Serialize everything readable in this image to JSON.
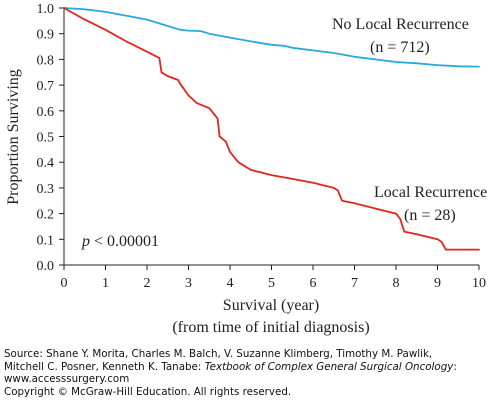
{
  "chart_data": {
    "type": "line",
    "xlabel": "Survival (year)",
    "xlabel_sub": "(from time of initial diagnosis)",
    "ylabel": "Proportion Surviving",
    "xlim": [
      0,
      10
    ],
    "ylim": [
      0,
      1.0
    ],
    "x_ticks": [
      "0",
      "1",
      "2",
      "3",
      "4",
      "5",
      "6",
      "7",
      "8",
      "9",
      "10"
    ],
    "y_ticks": [
      "0.0",
      "0.1",
      "0.2",
      "0.3",
      "0.4",
      "0.5",
      "0.6",
      "0.7",
      "0.8",
      "0.9",
      "1.0"
    ],
    "grid": false,
    "series": [
      {
        "name": "No Local Recurrence",
        "n_label": "(n = 712)",
        "color": "#29a8e0",
        "x": [
          0,
          0.5,
          1.0,
          1.5,
          2.0,
          2.5,
          2.8,
          3.0,
          3.3,
          3.5,
          4.0,
          4.5,
          5.0,
          5.3,
          5.5,
          6.0,
          6.5,
          7.0,
          7.5,
          8.0,
          8.5,
          9.0,
          9.3,
          9.5,
          10.0
        ],
        "y": [
          1.0,
          0.995,
          0.985,
          0.97,
          0.955,
          0.93,
          0.915,
          0.912,
          0.91,
          0.9,
          0.885,
          0.87,
          0.857,
          0.853,
          0.845,
          0.835,
          0.825,
          0.81,
          0.8,
          0.79,
          0.785,
          0.778,
          0.775,
          0.773,
          0.772
        ]
      },
      {
        "name": "Local Recurrence",
        "n_label": "(n = 28)",
        "color": "#e0261c",
        "x": [
          0,
          0.5,
          1.0,
          1.5,
          2.0,
          2.3,
          2.35,
          2.5,
          2.75,
          2.8,
          3.0,
          3.2,
          3.5,
          3.7,
          3.75,
          3.9,
          4.0,
          4.2,
          4.5,
          5.0,
          5.5,
          6.0,
          6.5,
          6.6,
          6.7,
          7.0,
          7.5,
          8.0,
          8.1,
          8.2,
          8.5,
          9.0,
          9.1,
          9.2,
          10.0
        ],
        "y": [
          1.0,
          0.955,
          0.915,
          0.87,
          0.83,
          0.805,
          0.75,
          0.735,
          0.72,
          0.705,
          0.66,
          0.63,
          0.61,
          0.57,
          0.5,
          0.48,
          0.44,
          0.4,
          0.37,
          0.35,
          0.335,
          0.32,
          0.3,
          0.29,
          0.25,
          0.24,
          0.22,
          0.2,
          0.18,
          0.13,
          0.12,
          0.1,
          0.09,
          0.06,
          0.06
        ]
      }
    ],
    "annotations": [
      {
        "text": "< 0.00001",
        "prefix": "p"
      }
    ]
  },
  "source": {
    "line1": "Source: Shane Y. Morita, Charles M. Balch, V. Suzanne Klimberg, Timothy M. Pawlik,",
    "line2_plain": "Mitchell C. Posner, Kenneth K. Tanabe: ",
    "line2_italic": "Textbook of Complex General Surgical Oncology",
    "line2_end": ":",
    "line3": "www.accesssurgery.com",
    "line4": "Copyright © McGraw-Hill Education. All rights reserved."
  }
}
